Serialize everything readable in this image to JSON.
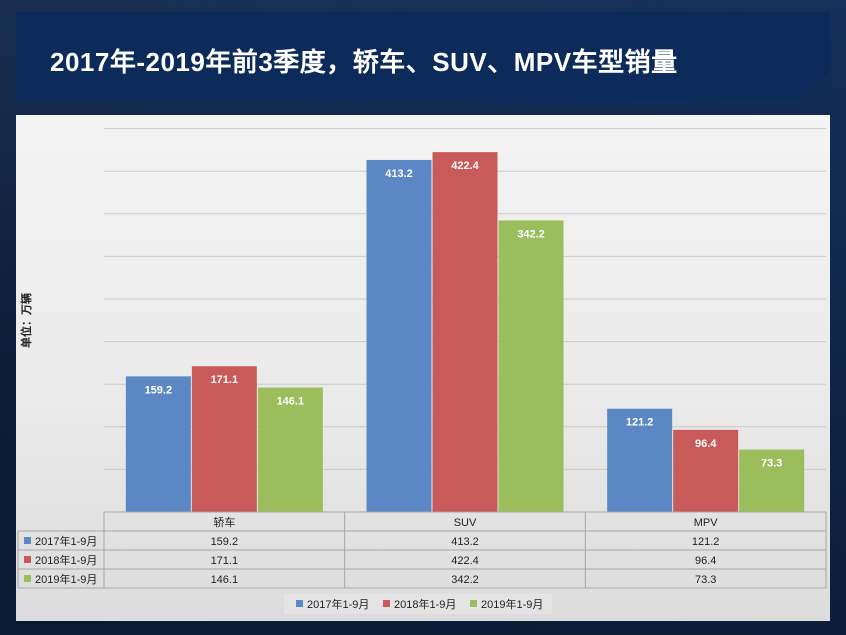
{
  "title": "2017年-2019年前3季度，轿车、SUV、MPV车型销量",
  "chart_data": {
    "type": "bar",
    "ylabel": "单位：万辆",
    "ylim": [
      0,
      500
    ],
    "grid": true,
    "legend_position": "bottom",
    "categories": [
      "轿车",
      "SUV",
      "MPV"
    ],
    "series": [
      {
        "name": "2017年1-9月",
        "color": "#5b87c5",
        "values": [
          159.2,
          413.2,
          121.2
        ]
      },
      {
        "name": "2018年1-9月",
        "color": "#c85a5a",
        "values": [
          171.1,
          422.4,
          96.4
        ]
      },
      {
        "name": "2019年1-9月",
        "color": "#9bbd5c",
        "values": [
          146.1,
          342.2,
          73.3
        ]
      }
    ]
  }
}
